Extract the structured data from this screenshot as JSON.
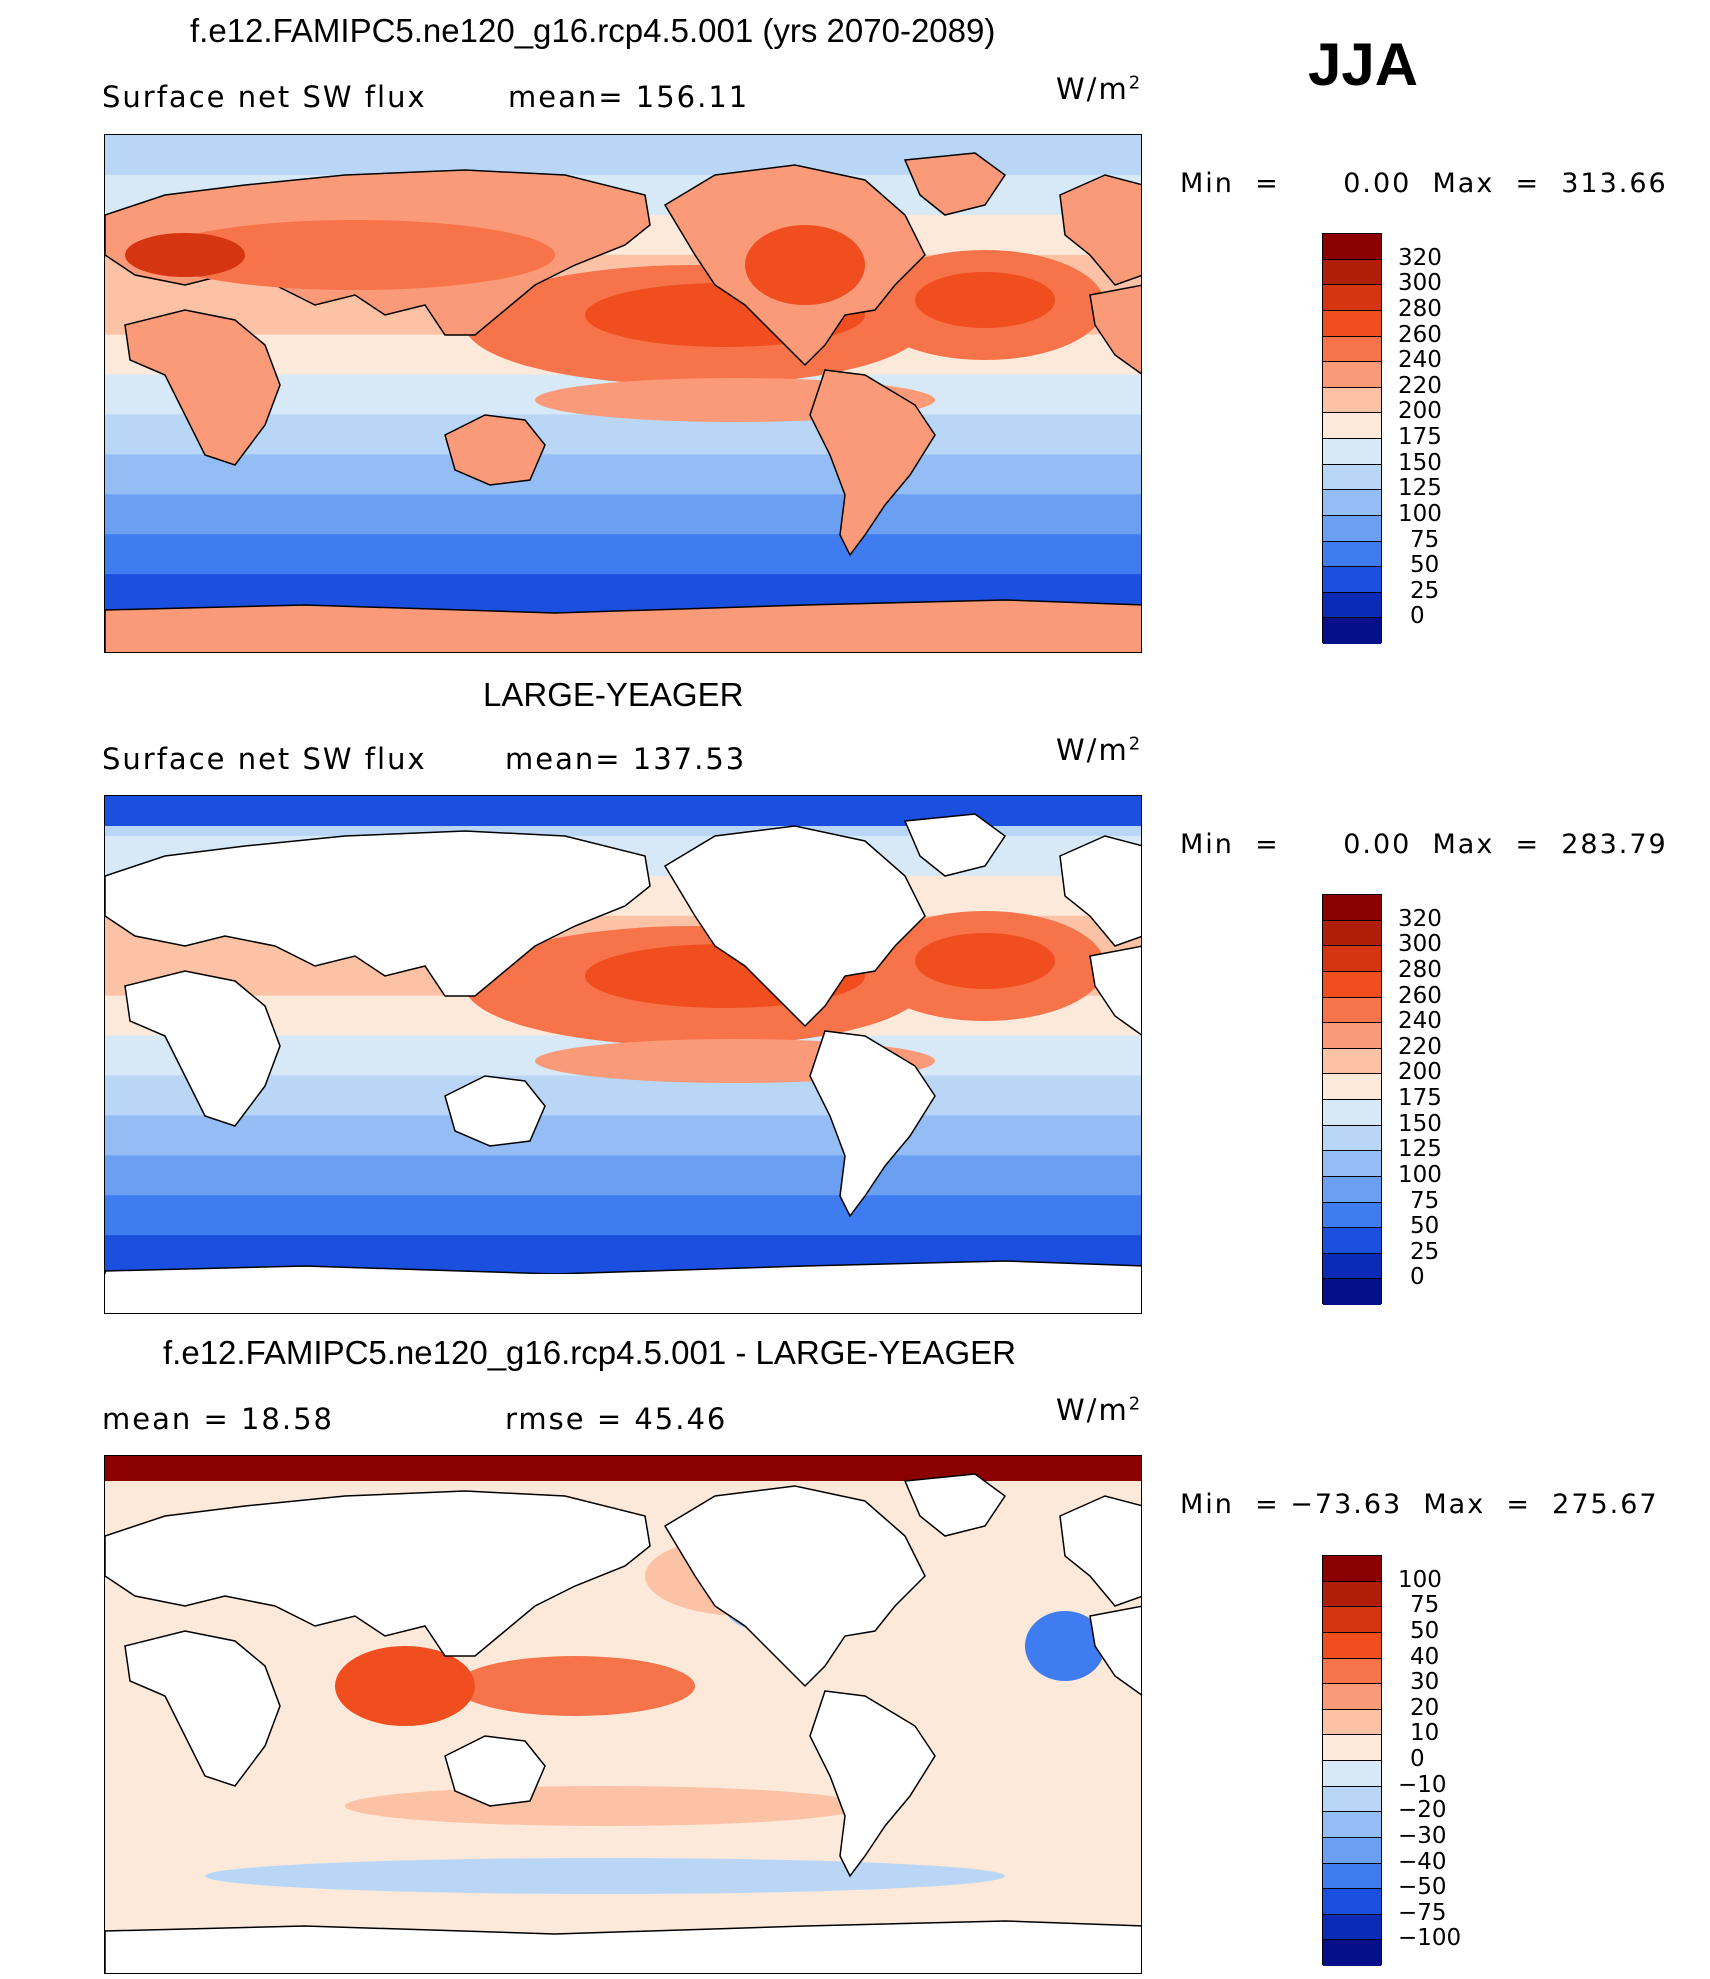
{
  "season": "JJA",
  "panels": [
    {
      "title": "f.e12.FAMIPC5.ne120_g16.rcp4.5.001 (yrs 2070-2089)",
      "left_text": "Surface  net  SW  flux",
      "right_text": "mean=  156.11",
      "unit": "W/m",
      "unit_exp": "2",
      "minmax": "Min  =      0.00  Max  =  313.66",
      "colorbar_labels": [
        "320",
        "300",
        "280",
        "260",
        "240",
        "220",
        "200",
        "175",
        "150",
        "125",
        "100",
        "75",
        "50",
        "25",
        "0"
      ],
      "colorbar_colors": [
        "#8b0000",
        "#b01e0a",
        "#d63512",
        "#f04e1e",
        "#f7734a",
        "#fa9a78",
        "#fbc2a6",
        "#fde9da",
        "#d7e8f7",
        "#bad6f6",
        "#94bdf5",
        "#6b9ff2",
        "#3f7cf0",
        "#1a4fe0",
        "#0c2ab8",
        "#050f8a"
      ],
      "map_palette": "abs"
    },
    {
      "title": "LARGE-YEAGER",
      "left_text": "Surface  net  SW  flux",
      "right_text": "mean=  137.53",
      "unit": "W/m",
      "unit_exp": "2",
      "minmax": "Min  =      0.00  Max  =  283.79",
      "colorbar_labels": [
        "320",
        "300",
        "280",
        "260",
        "240",
        "220",
        "200",
        "175",
        "150",
        "125",
        "100",
        "75",
        "50",
        "25",
        "0"
      ],
      "colorbar_colors": [
        "#8b0000",
        "#b01e0a",
        "#d63512",
        "#f04e1e",
        "#f7734a",
        "#fa9a78",
        "#fbc2a6",
        "#fde9da",
        "#d7e8f7",
        "#bad6f6",
        "#94bdf5",
        "#6b9ff2",
        "#3f7cf0",
        "#1a4fe0",
        "#0c2ab8",
        "#050f8a"
      ],
      "map_palette": "ocean"
    },
    {
      "title": "f.e12.FAMIPC5.ne120_g16.rcp4.5.001 - LARGE-YEAGER",
      "left_text": "mean  =     18.58",
      "right_text": "rmse  =     45.46",
      "unit": "W/m",
      "unit_exp": "2",
      "minmax": "Min  = −73.63  Max  =  275.67",
      "colorbar_labels": [
        "100",
        "75",
        "50",
        "40",
        "30",
        "20",
        "10",
        "0",
        "−10",
        "−20",
        "−30",
        "−40",
        "−50",
        "−75",
        "−100"
      ],
      "colorbar_colors": [
        "#8b0000",
        "#b01e0a",
        "#d63512",
        "#f04e1e",
        "#f7734a",
        "#fa9a78",
        "#fbc2a6",
        "#fde9da",
        "#d7e8f7",
        "#bad6f6",
        "#94bdf5",
        "#6b9ff2",
        "#3f7cf0",
        "#1a4fe0",
        "#0c2ab8",
        "#050f8a"
      ],
      "map_palette": "diff"
    }
  ]
}
